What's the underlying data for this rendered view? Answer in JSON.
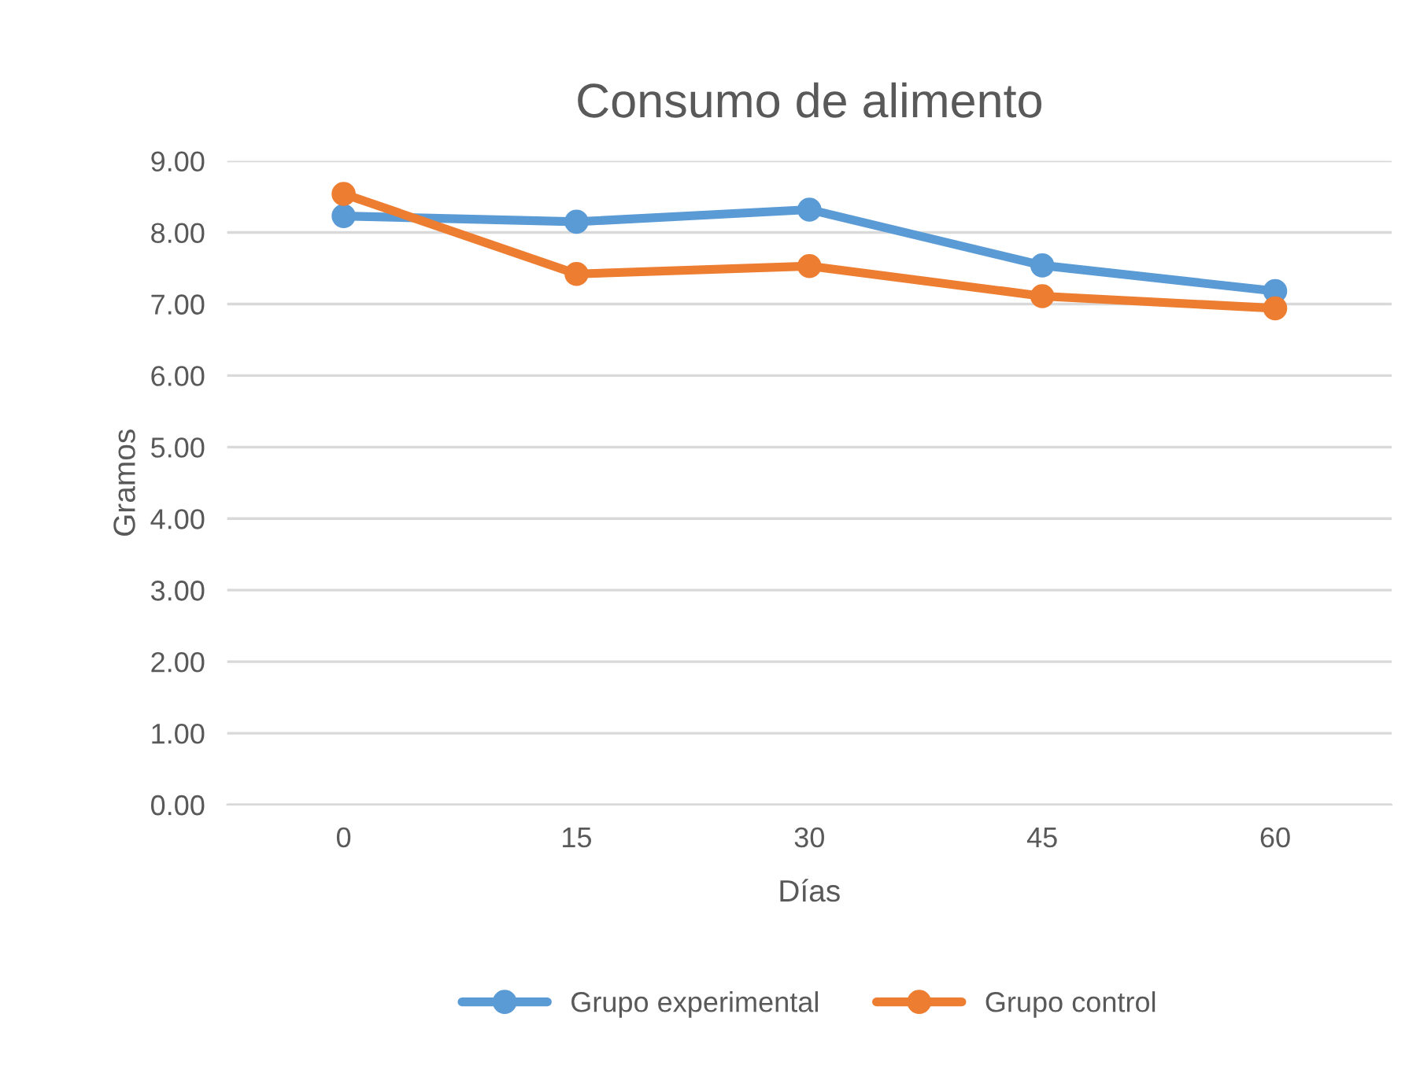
{
  "chart_data": {
    "type": "line",
    "title": "Consumo de alimento",
    "xlabel": "Días",
    "ylabel": "Gramos",
    "categories": [
      "0",
      "15",
      "30",
      "45",
      "60"
    ],
    "series": [
      {
        "name": "Grupo experimental",
        "color": "#5b9bd5",
        "values": [
          8.23,
          8.15,
          8.32,
          7.54,
          7.18
        ]
      },
      {
        "name": "Grupo control",
        "color": "#ed7d31",
        "values": [
          8.54,
          7.42,
          7.53,
          7.11,
          6.94
        ]
      }
    ],
    "ylim": [
      0,
      9
    ],
    "yticks": [
      {
        "value": 0,
        "label": "0.00"
      },
      {
        "value": 1,
        "label": "1.00"
      },
      {
        "value": 2,
        "label": "2.00"
      },
      {
        "value": 3,
        "label": "3.00"
      },
      {
        "value": 4,
        "label": "4.00"
      },
      {
        "value": 5,
        "label": "5.00"
      },
      {
        "value": 6,
        "label": "6.00"
      },
      {
        "value": 7,
        "label": "7.00"
      },
      {
        "value": 8,
        "label": "8.00"
      },
      {
        "value": 9,
        "label": "9.00"
      }
    ],
    "grid": "y",
    "legend": "bottom",
    "marker": "circle",
    "line_style": "solid"
  }
}
